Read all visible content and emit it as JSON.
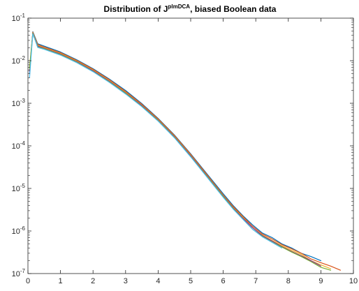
{
  "chart_data": {
    "type": "line",
    "title": {
      "prefix": "Distribution of J",
      "superscript": "plmDCA",
      "suffix": ", biased Boolean data"
    },
    "xlabel": "",
    "ylabel": "",
    "xlim": [
      0,
      10
    ],
    "ylim": [
      1e-07,
      0.1
    ],
    "yscale": "log",
    "grid": false,
    "legend": "none",
    "x_ticks": [
      "0",
      "1",
      "2",
      "3",
      "4",
      "5",
      "6",
      "7",
      "8",
      "9",
      "10"
    ],
    "y_ticks": [
      {
        "base": "10",
        "exp": "-7"
      },
      {
        "base": "10",
        "exp": "-6"
      },
      {
        "base": "10",
        "exp": "-5"
      },
      {
        "base": "10",
        "exp": "-4"
      },
      {
        "base": "10",
        "exp": "-3"
      },
      {
        "base": "10",
        "exp": "-2"
      },
      {
        "base": "10",
        "exp": "-1"
      }
    ],
    "x": [
      0.05,
      0.15,
      0.3,
      0.5,
      1.0,
      1.5,
      2.0,
      2.5,
      3.0,
      3.5,
      4.0,
      4.5,
      5.0,
      5.5,
      6.0,
      6.3,
      6.6,
      6.9,
      7.2,
      7.5,
      7.8,
      8.1,
      8.4,
      8.7,
      9.0,
      9.3,
      9.6
    ],
    "series": [
      {
        "color": "#0072BD",
        "values": [
          0.005,
          0.048,
          0.025,
          0.022,
          0.016,
          0.0105,
          0.0065,
          0.0037,
          0.002,
          0.00098,
          0.00044,
          0.00018,
          6.5e-05,
          2.2e-05,
          7.5e-06,
          4e-06,
          2.3e-06,
          1.4e-06,
          9e-07,
          7e-07,
          5e-07,
          4e-07,
          3e-07,
          2.5e-07,
          2e-07,
          null,
          null
        ]
      },
      {
        "color": "#D95319",
        "values": [
          0.006,
          0.047,
          0.024,
          0.021,
          0.0155,
          0.0102,
          0.0063,
          0.0036,
          0.0019,
          0.00095,
          0.00043,
          0.000175,
          6.3e-05,
          2.1e-05,
          7e-06,
          3.8e-06,
          2.2e-06,
          1.3e-06,
          8.5e-07,
          6.5e-07,
          4.8e-07,
          3.8e-07,
          3e-07,
          2.2e-07,
          1.8e-07,
          1.5e-07,
          1.2e-07
        ]
      },
      {
        "color": "#EDB120",
        "values": [
          0.007,
          0.046,
          0.023,
          0.02,
          0.0148,
          0.0098,
          0.006,
          0.0034,
          0.0018,
          0.0009,
          0.00041,
          0.000168,
          6e-05,
          2e-05,
          6.8e-06,
          3.6e-06,
          2.1e-06,
          1.2e-06,
          8e-07,
          6e-07,
          4.5e-07,
          3.5e-07,
          2.8e-07,
          2e-07,
          1.6e-07,
          1.3e-07,
          null
        ]
      },
      {
        "color": "#7E2F8E",
        "values": [
          0.0055,
          0.045,
          0.022,
          0.0195,
          0.0143,
          0.0095,
          0.0058,
          0.0033,
          0.00175,
          0.00088,
          0.0004,
          0.000163,
          5.8e-05,
          1.95e-05,
          6.6e-06,
          3.5e-06,
          2e-06,
          1.2e-06,
          7.8e-07,
          5.8e-07,
          4.3e-07,
          3.3e-07,
          2.6e-07,
          2e-07,
          1.5e-07,
          null,
          null
        ]
      },
      {
        "color": "#77AC30",
        "values": [
          0.0065,
          0.044,
          0.021,
          0.019,
          0.0139,
          0.0092,
          0.0056,
          0.0032,
          0.0017,
          0.00085,
          0.00039,
          0.000158,
          5.6e-05,
          1.9e-05,
          6.4e-06,
          3.4e-06,
          1.9e-06,
          1.1e-06,
          7.5e-07,
          5.5e-07,
          4.2e-07,
          3.2e-07,
          2.5e-07,
          1.9e-07,
          1.4e-07,
          1.2e-07,
          null
        ]
      },
      {
        "color": "#4DBEEE",
        "values": [
          0.004,
          0.043,
          0.0205,
          0.0185,
          0.0135,
          0.009,
          0.0055,
          0.0031,
          0.00165,
          0.00083,
          0.00038,
          0.000155,
          5.5e-05,
          1.85e-05,
          6.2e-06,
          3.3e-06,
          1.9e-06,
          1.1e-06,
          7.3e-07,
          5.4e-07,
          4e-07,
          null,
          null,
          null,
          null,
          null,
          null
        ]
      }
    ]
  }
}
